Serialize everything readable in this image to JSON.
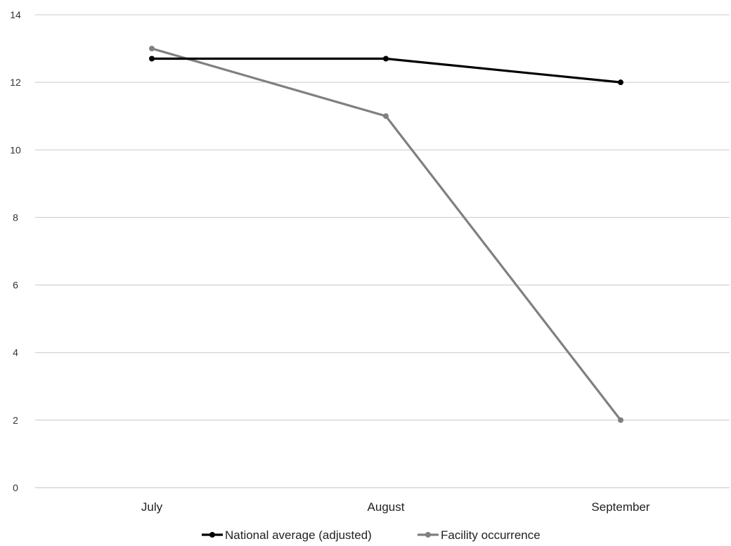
{
  "chart_data": {
    "type": "line",
    "title": "",
    "xlabel": "",
    "ylabel": "",
    "categories": [
      "July",
      "August",
      "September"
    ],
    "ylim": [
      0,
      14
    ],
    "yticks": [
      0,
      2,
      4,
      6,
      8,
      10,
      12,
      14
    ],
    "grid": true,
    "legend_position": "bottom",
    "series": [
      {
        "name": "National average (adjusted)",
        "values": [
          12.7,
          12.7,
          12.0
        ],
        "color": "#000000"
      },
      {
        "name": "Facility occurrence",
        "values": [
          13.0,
          11.0,
          2.0
        ],
        "color": "#808080"
      }
    ]
  }
}
